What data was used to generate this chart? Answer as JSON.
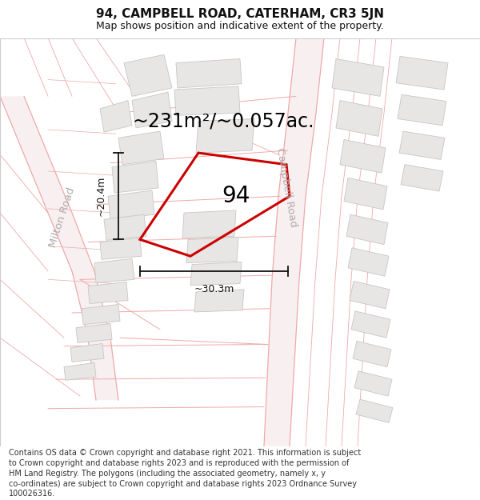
{
  "title": "94, CAMPBELL ROAD, CATERHAM, CR3 5JN",
  "subtitle": "Map shows position and indicative extent of the property.",
  "footer": "Contains OS data © Crown copyright and database right 2021. This information is subject to Crown copyright and database rights 2023 and is reproduced with the permission of HM Land Registry. The polygons (including the associated geometry, namely x, y co-ordinates) are subject to Crown copyright and database rights 2023 Ordnance Survey 100026316.",
  "area_text": "~231m²/~0.057ac.",
  "label_94": "94",
  "dim_height": "~20.4m",
  "dim_width": "~30.3m",
  "road_label_left": "Milton Road",
  "road_label_right": "Campbell Road",
  "map_bg": "#ffffff",
  "road_line": "#f0a8a8",
  "road_fill": "#f8f0f0",
  "building_fill": "#e8e5e5",
  "building_edge": "#c8c5c5",
  "property_edge": "#cc0000",
  "property_lw": 2.2,
  "dim_color": "#111111",
  "text_color": "#111111",
  "road_text_color": "#b0aaaa",
  "title_fontsize": 11,
  "subtitle_fontsize": 9,
  "area_fontsize": 17,
  "label_fontsize": 20,
  "road_label_fontsize": 9.5,
  "dim_fontsize": 9,
  "footer_fontsize": 7
}
